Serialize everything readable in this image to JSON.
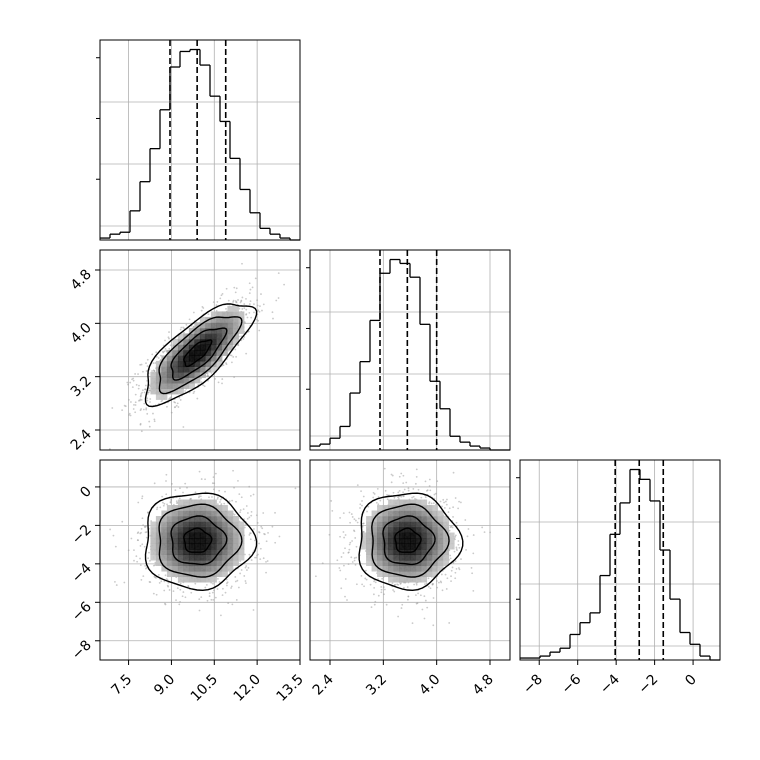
{
  "chart_data": {
    "type": "corner",
    "title": "",
    "grid": true,
    "colors": {
      "line": "#000000",
      "grid": "#b0b0b0",
      "scatter": "#9e9e9e",
      "density_dark": "#000000",
      "density_light": "#ffffff"
    },
    "parameters": [
      {
        "name": "",
        "range": [
          6.5,
          13.5
        ],
        "ticks": [
          7.5,
          9.0,
          10.5,
          12.0,
          13.5
        ],
        "tick_labels": [
          "7.5",
          "9.0",
          "10.5",
          "12.0",
          "13.5"
        ],
        "quantiles": [
          8.95,
          9.9,
          10.9
        ]
      },
      {
        "name": "",
        "range": [
          2.1,
          5.1
        ],
        "ticks": [
          2.4,
          3.2,
          4.0,
          4.8
        ],
        "tick_labels": [
          "2.4",
          "3.2",
          "4.0",
          "4.8"
        ],
        "quantiles": [
          3.15,
          3.56,
          4.0
        ]
      },
      {
        "name": "",
        "range": [
          -9.0,
          1.4
        ],
        "ticks": [
          -8,
          -6,
          -4,
          -2,
          0
        ],
        "tick_labels": [
          "−8",
          "−6",
          "−4",
          "−2",
          "0"
        ],
        "quantiles": [
          -4.05,
          -2.8,
          -1.55
        ]
      }
    ],
    "histograms": [
      {
        "param": 0,
        "bin_edges": [
          6.5,
          6.85,
          7.2,
          7.55,
          7.9,
          8.25,
          8.6,
          8.95,
          9.3,
          9.65,
          10.0,
          10.35,
          10.7,
          11.05,
          11.4,
          11.75,
          12.1,
          12.45,
          12.8,
          13.15,
          13.5
        ],
        "counts": [
          1,
          3,
          4,
          15,
          30,
          47,
          67,
          89,
          97,
          98,
          90,
          74,
          61,
          42,
          26,
          14,
          6,
          3,
          1,
          0
        ]
      },
      {
        "param": 1,
        "bin_edges": [
          2.1,
          2.25,
          2.4,
          2.55,
          2.7,
          2.85,
          3.0,
          3.15,
          3.3,
          3.45,
          3.6,
          3.75,
          3.9,
          4.05,
          4.2,
          4.35,
          4.5,
          4.65,
          4.8,
          4.95,
          5.1
        ],
        "counts": [
          2,
          3,
          6,
          12,
          29,
          45,
          66,
          90,
          97,
          95,
          88,
          64,
          35,
          21,
          7,
          4,
          2,
          1,
          0,
          0
        ]
      },
      {
        "param": 2,
        "bin_edges": [
          -9.0,
          -8.48,
          -7.96,
          -7.44,
          -6.92,
          -6.4,
          -5.88,
          -5.36,
          -4.84,
          -4.32,
          -3.8,
          -3.28,
          -2.76,
          -2.24,
          -1.72,
          -1.2,
          -0.68,
          -0.16,
          0.36,
          0.88,
          1.4
        ],
        "counts": [
          1,
          1,
          2,
          4,
          6,
          13,
          19,
          24,
          43,
          64,
          80,
          97,
          92,
          81,
          56,
          31,
          14,
          8,
          2,
          0
        ]
      }
    ],
    "correlations": [
      {
        "x": 0,
        "y": 1,
        "mean": [
          9.9,
          3.56
        ],
        "sd": [
          0.95,
          0.38
        ],
        "rho": 0.75
      },
      {
        "x": 0,
        "y": 2,
        "mean": [
          9.9,
          -2.8
        ],
        "sd": [
          0.95,
          1.25
        ],
        "rho": 0.0
      },
      {
        "x": 1,
        "y": 2,
        "mean": [
          3.56,
          -2.8
        ],
        "sd": [
          0.38,
          1.25
        ],
        "rho": 0.0
      }
    ]
  }
}
